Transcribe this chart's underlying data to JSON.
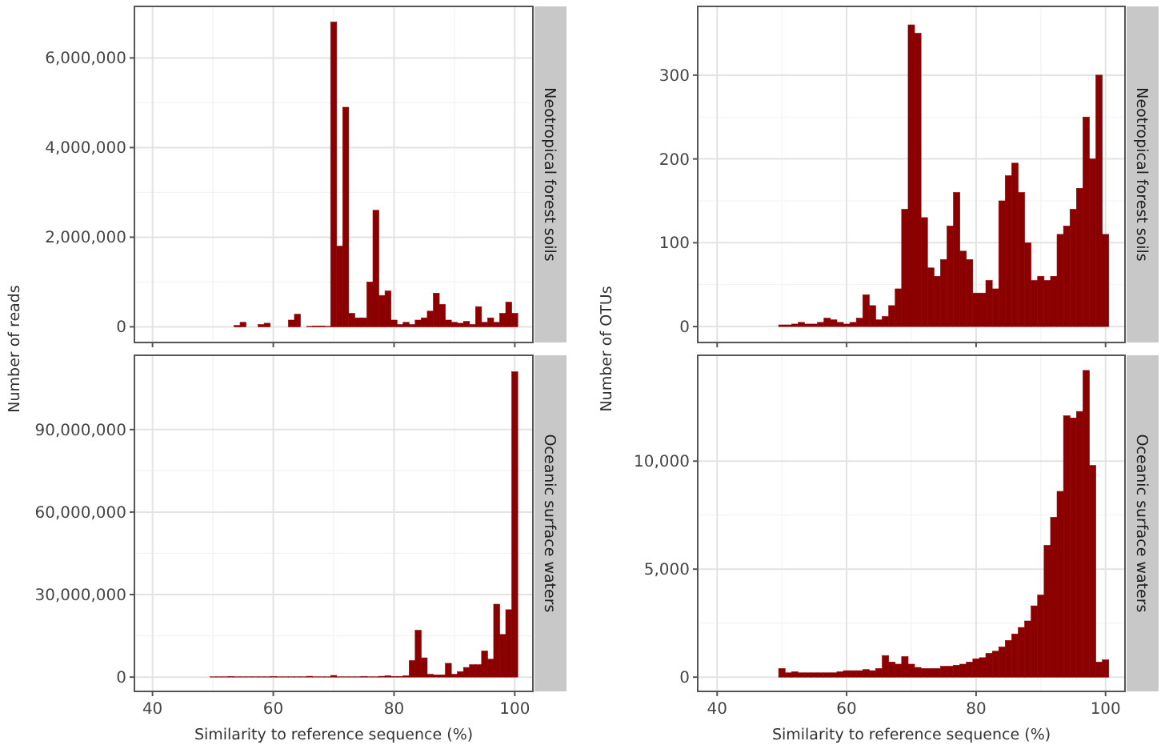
{
  "chart_data": [
    {
      "type": "histogram",
      "title": "Neotropical forest soils",
      "ylabel": "Number of reads",
      "color": "#8b0000",
      "tick_labels": "y",
      "grid": true,
      "bins": [
        49.5,
        50.5,
        51.5,
        52.5,
        53.5,
        54.5,
        55.5,
        56.5,
        57.5,
        58.5,
        59.5,
        60.5,
        61.5,
        62.5,
        63.5,
        64.5,
        65.5,
        66.5,
        67.5,
        68.5,
        69.5,
        70.5,
        71.5,
        72.5,
        73.5,
        74.5,
        75.5,
        76.5,
        77.5,
        78.5,
        79.5,
        80.5,
        81.5,
        82.5,
        83.5,
        84.5,
        85.5,
        86.5,
        87.5,
        88.5,
        89.5,
        90.5,
        91.5,
        92.5,
        93.5,
        94.5,
        95.5,
        96.5,
        97.5,
        98.5,
        99.5,
        100.5
      ],
      "values": [
        0,
        0,
        0,
        0,
        30000,
        100000,
        0,
        0,
        50000,
        80000,
        0,
        0,
        0,
        150000,
        280000,
        0,
        10000,
        20000,
        20000,
        10000,
        6800000,
        1800000,
        4900000,
        300000,
        200000,
        200000,
        1000000,
        2600000,
        700000,
        800000,
        150000,
        50000,
        100000,
        50000,
        150000,
        200000,
        350000,
        750000,
        500000,
        150000,
        100000,
        80000,
        120000,
        50000,
        450000,
        100000,
        200000,
        100000,
        300000,
        550000,
        300000
      ],
      "xlim": [
        37,
        103
      ],
      "xticks": [
        40,
        60,
        80,
        100
      ],
      "ylim": [
        -350000,
        7150000
      ],
      "yticks": [
        {
          "value": 0,
          "label": "0"
        },
        {
          "value": 2000000,
          "label": "2,000,000"
        },
        {
          "value": 4000000,
          "label": "4,000,000"
        },
        {
          "value": 6000000,
          "label": "6,000,000"
        }
      ]
    },
    {
      "type": "histogram",
      "title": "Neotropical forest soils",
      "ylabel": "Number of OTUs",
      "color": "#8b0000",
      "tick_labels": "y",
      "grid": true,
      "bins": [
        49.5,
        50.5,
        51.5,
        52.5,
        53.5,
        54.5,
        55.5,
        56.5,
        57.5,
        58.5,
        59.5,
        60.5,
        61.5,
        62.5,
        63.5,
        64.5,
        65.5,
        66.5,
        67.5,
        68.5,
        69.5,
        70.5,
        71.5,
        72.5,
        73.5,
        74.5,
        75.5,
        76.5,
        77.5,
        78.5,
        79.5,
        80.5,
        81.5,
        82.5,
        83.5,
        84.5,
        85.5,
        86.5,
        87.5,
        88.5,
        89.5,
        90.5,
        91.5,
        92.5,
        93.5,
        94.5,
        95.5,
        96.5,
        97.5,
        98.5,
        99.5,
        100.5
      ],
      "values": [
        2,
        2,
        3,
        5,
        3,
        3,
        5,
        10,
        8,
        5,
        3,
        5,
        10,
        38,
        25,
        8,
        12,
        25,
        45,
        140,
        360,
        350,
        130,
        70,
        60,
        80,
        120,
        160,
        90,
        80,
        40,
        40,
        55,
        45,
        150,
        180,
        195,
        160,
        100,
        55,
        60,
        55,
        60,
        110,
        120,
        140,
        165,
        250,
        200,
        300,
        110
      ],
      "xlim": [
        37,
        103
      ],
      "xticks": [
        40,
        60,
        80,
        100
      ],
      "ylim": [
        -19,
        382
      ],
      "yticks": [
        0,
        100,
        200,
        300
      ]
    },
    {
      "type": "histogram",
      "title": "Oceanic surface waters",
      "xlabel": "Similarity to reference sequence (%)",
      "color": "#8b0000",
      "grid": true,
      "bins": [
        49.5,
        50.5,
        51.5,
        52.5,
        53.5,
        54.5,
        55.5,
        56.5,
        57.5,
        58.5,
        59.5,
        60.5,
        61.5,
        62.5,
        63.5,
        64.5,
        65.5,
        66.5,
        67.5,
        68.5,
        69.5,
        70.5,
        71.5,
        72.5,
        73.5,
        74.5,
        75.5,
        76.5,
        77.5,
        78.5,
        79.5,
        80.5,
        81.5,
        82.5,
        83.5,
        84.5,
        85.5,
        86.5,
        87.5,
        88.5,
        89.5,
        90.5,
        91.5,
        92.5,
        93.5,
        94.5,
        95.5,
        96.5,
        97.5,
        98.5,
        99.5,
        100.5
      ],
      "values": [
        100000,
        100000,
        100000,
        200000,
        100000,
        100000,
        100000,
        100000,
        100000,
        100000,
        200000,
        100000,
        100000,
        100000,
        100000,
        100000,
        300000,
        100000,
        100000,
        100000,
        600000,
        100000,
        100000,
        100000,
        100000,
        200000,
        100000,
        100000,
        300000,
        500000,
        200000,
        200000,
        500000,
        6000000,
        17000000,
        7000000,
        1000000,
        800000,
        800000,
        5000000,
        1000000,
        2000000,
        3500000,
        4500000,
        4500000,
        9500000,
        6500000,
        26500000,
        15500000,
        24500000,
        111000000
      ],
      "xlim": [
        37,
        103
      ],
      "xticks": [
        40,
        60,
        80,
        100
      ],
      "ylim": [
        -5200000,
        117000000
      ],
      "yticks": [
        {
          "value": 0,
          "label": "0"
        },
        {
          "value": 30000000,
          "label": "30,000,000"
        },
        {
          "value": 60000000,
          "label": "60,000,000"
        },
        {
          "value": 90000000,
          "label": "90,000,000"
        }
      ]
    },
    {
      "type": "histogram",
      "title": "Oceanic surface waters",
      "xlabel": "Similarity to reference sequence (%)",
      "color": "#8b0000",
      "grid": true,
      "bins": [
        49.5,
        50.5,
        51.5,
        52.5,
        53.5,
        54.5,
        55.5,
        56.5,
        57.5,
        58.5,
        59.5,
        60.5,
        61.5,
        62.5,
        63.5,
        64.5,
        65.5,
        66.5,
        67.5,
        68.5,
        69.5,
        70.5,
        71.5,
        72.5,
        73.5,
        74.5,
        75.5,
        76.5,
        77.5,
        78.5,
        79.5,
        80.5,
        81.5,
        82.5,
        83.5,
        84.5,
        85.5,
        86.5,
        87.5,
        88.5,
        89.5,
        90.5,
        91.5,
        92.5,
        93.5,
        94.5,
        95.5,
        96.5,
        97.5,
        98.5,
        99.5,
        100.5
      ],
      "values": [
        400,
        200,
        250,
        200,
        200,
        200,
        200,
        200,
        200,
        250,
        300,
        300,
        300,
        350,
        300,
        400,
        1000,
        700,
        600,
        950,
        600,
        450,
        400,
        400,
        400,
        500,
        500,
        550,
        600,
        700,
        850,
        900,
        1100,
        1200,
        1400,
        1700,
        2000,
        2300,
        2600,
        3300,
        3800,
        6100,
        7400,
        8600,
        12100,
        12000,
        12300,
        14200,
        9800,
        700,
        800
      ],
      "xlim": [
        37,
        103
      ],
      "xticks": [
        40,
        60,
        80,
        100
      ],
      "ylim": [
        -660,
        14900
      ],
      "yticks": [
        {
          "value": 0,
          "label": "0"
        },
        {
          "value": 5000,
          "label": "5,000"
        },
        {
          "value": 10000,
          "label": "10,000"
        }
      ]
    }
  ]
}
